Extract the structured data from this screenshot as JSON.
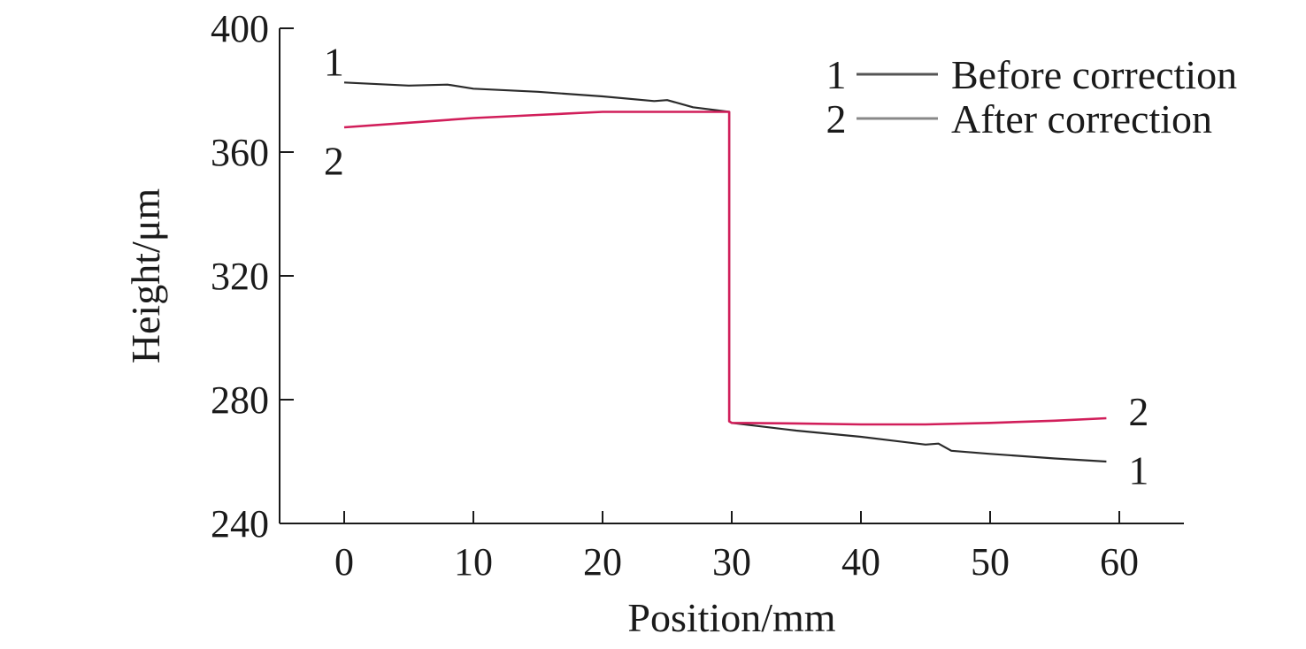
{
  "chart_data": {
    "type": "line",
    "title": "",
    "xlabel": "Position/mm",
    "ylabel": "Height/μm",
    "xlim": [
      -5,
      65
    ],
    "ylim": [
      240,
      400
    ],
    "x_ticks": [
      0,
      10,
      20,
      30,
      40,
      50,
      60
    ],
    "y_ticks": [
      240,
      280,
      320,
      360,
      400
    ],
    "x_tick_labels": [
      "0",
      "10",
      "20",
      "30",
      "40",
      "50",
      "60"
    ],
    "y_tick_labels": [
      "240",
      "280",
      "320",
      "360",
      "400"
    ],
    "grid": false,
    "legend_position": "top-right",
    "series": [
      {
        "name": "Before correction",
        "id": "1",
        "color": "#2b2b2b",
        "x": [
          0,
          5,
          8,
          10,
          15,
          20,
          24,
          25,
          27,
          29.8,
          29.8,
          30,
          35,
          40,
          45,
          46,
          47,
          50,
          55,
          59
        ],
        "y": [
          382.5,
          381.5,
          381.8,
          380.5,
          379.5,
          378,
          376.5,
          376.8,
          374.5,
          373,
          273,
          272.5,
          270,
          268,
          265.5,
          265.8,
          263.5,
          262.5,
          261,
          260
        ]
      },
      {
        "name": "After correction",
        "id": "2",
        "color": "#d11e5a",
        "x": [
          0,
          5,
          10,
          15,
          20,
          25,
          29.8,
          29.8,
          30,
          35,
          40,
          45,
          50,
          55,
          59
        ],
        "y": [
          368,
          369.5,
          371,
          372,
          373,
          373,
          373,
          273,
          272.5,
          272.3,
          272,
          272,
          272.5,
          273.2,
          274
        ]
      }
    ],
    "curve_labels": [
      {
        "text": "1",
        "x": -0.8,
        "y": 389
      },
      {
        "text": "2",
        "x": -0.8,
        "y": 357
      },
      {
        "text": "2",
        "x": 61.5,
        "y": 276
      },
      {
        "text": "1",
        "x": 61.5,
        "y": 257
      }
    ],
    "legend": [
      {
        "id": "1",
        "label": "Before correction",
        "color": "#555555"
      },
      {
        "id": "2",
        "label": "After correction",
        "color": "#888888"
      }
    ]
  }
}
